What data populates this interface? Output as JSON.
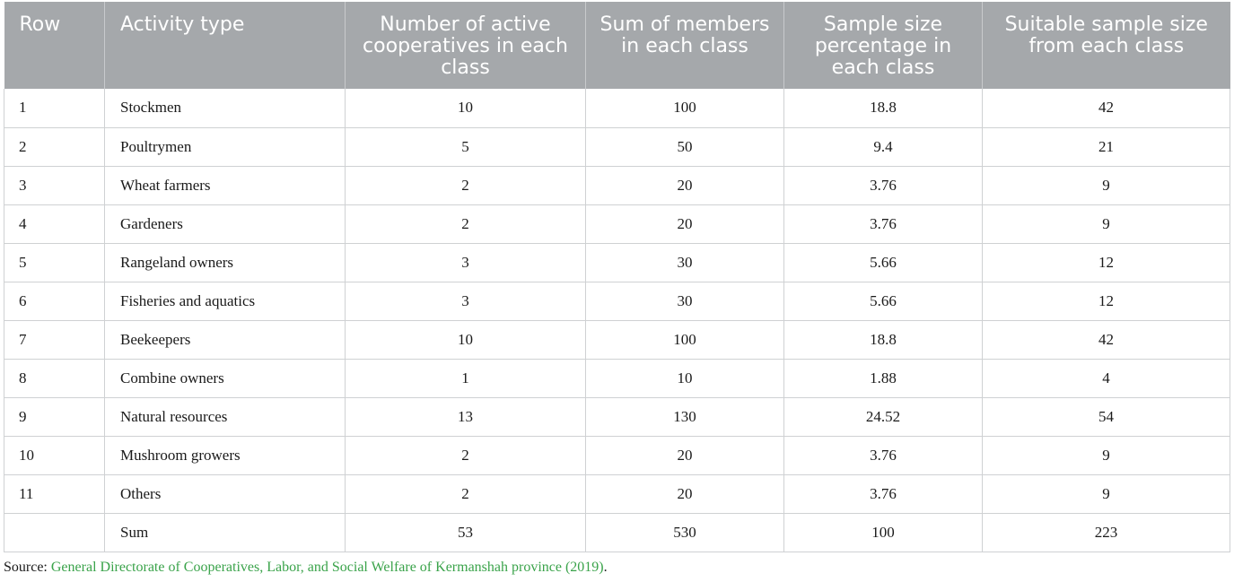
{
  "table": {
    "headers": [
      "Row",
      "Activity type",
      "Number of active cooperatives in each class",
      "Sum of members in each class",
      "Sample size percentage in each class",
      "Suitable sample size from each class"
    ],
    "rows": [
      [
        "1",
        "Stockmen",
        "10",
        "100",
        "18.8",
        "42"
      ],
      [
        "2",
        "Poultrymen",
        "5",
        "50",
        "9.4",
        "21"
      ],
      [
        "3",
        "Wheat farmers",
        "2",
        "20",
        "3.76",
        "9"
      ],
      [
        "4",
        "Gardeners",
        "2",
        "20",
        "3.76",
        "9"
      ],
      [
        "5",
        "Rangeland owners",
        "3",
        "30",
        "5.66",
        "12"
      ],
      [
        "6",
        "Fisheries and aquatics",
        "3",
        "30",
        "5.66",
        "12"
      ],
      [
        "7",
        "Beekeepers",
        "10",
        "100",
        "18.8",
        "42"
      ],
      [
        "8",
        "Combine owners",
        "1",
        "10",
        "1.88",
        "4"
      ],
      [
        "9",
        "Natural resources",
        "13",
        "130",
        "24.52",
        "54"
      ],
      [
        "10",
        "Mushroom growers",
        "2",
        "20",
        "3.76",
        "9"
      ],
      [
        "11",
        "Others",
        "2",
        "20",
        "3.76",
        "9"
      ],
      [
        "",
        "Sum",
        "53",
        "530",
        "100",
        "223"
      ]
    ]
  },
  "source": {
    "prefix": "Source: ",
    "link_text": "General Directorate of Cooperatives, Labor, and Social Welfare of Kermanshah province (2019)",
    "suffix": "."
  },
  "colors": {
    "header_bg": "#a5a8ab",
    "header_text": "#ffffff",
    "link": "#3aa34a"
  }
}
